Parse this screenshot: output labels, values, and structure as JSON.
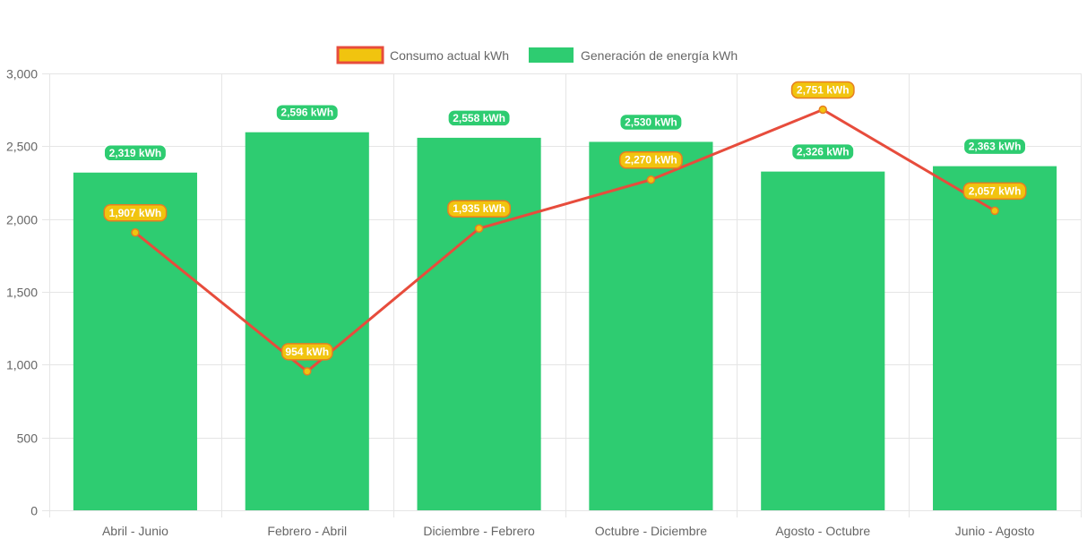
{
  "chart_data": {
    "type": "bar",
    "categories": [
      "Abril - Junio",
      "Febrero - Abril",
      "Diciembre - Febrero",
      "Octubre - Diciembre",
      "Agosto - Octubre",
      "Junio - Agosto"
    ],
    "series": [
      {
        "name": "Consumo actual kWh",
        "type": "line",
        "values": [
          1907,
          954,
          1935,
          2270,
          2751,
          2057
        ],
        "labels": [
          "1,907 kWh",
          "954 kWh",
          "1,935 kWh",
          "2,270 kWh",
          "2,751 kWh",
          "2,057 kWh"
        ]
      },
      {
        "name": "Generación de energía kWh",
        "type": "bar",
        "values": [
          2319,
          2596,
          2558,
          2530,
          2326,
          2363
        ],
        "labels": [
          "2,319 kWh",
          "2,596 kWh",
          "2,558 kWh",
          "2,530 kWh",
          "2,326 kWh",
          "2,363 kWh"
        ]
      }
    ],
    "ylim": [
      0,
      3000
    ],
    "yticks": [
      0,
      500,
      1000,
      1500,
      2000,
      2500,
      3000
    ],
    "ytick_labels": [
      "0",
      "500",
      "1,000",
      "1,500",
      "2,000",
      "2,500",
      "3,000"
    ],
    "grid": true,
    "legend_position": "top",
    "colors": {
      "bar_fill": "#2ecc71",
      "line_stroke": "#e74c3c",
      "point_fill": "#f1c40f",
      "line_label_bg": "#f1c40f",
      "line_label_border": "#e67e22",
      "grid": "#e5e5e5",
      "tick_text": "#666666"
    }
  }
}
